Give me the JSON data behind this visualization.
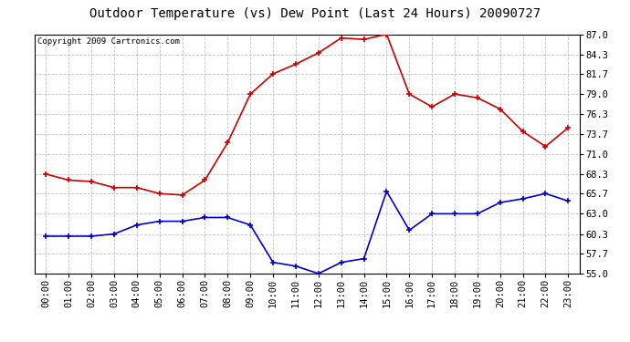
{
  "title": "Outdoor Temperature (vs) Dew Point (Last 24 Hours) 20090727",
  "copyright": "Copyright 2009 Cartronics.com",
  "hours": [
    "00:00",
    "01:00",
    "02:00",
    "03:00",
    "04:00",
    "05:00",
    "06:00",
    "07:00",
    "08:00",
    "09:00",
    "10:00",
    "11:00",
    "12:00",
    "13:00",
    "14:00",
    "15:00",
    "16:00",
    "17:00",
    "18:00",
    "19:00",
    "20:00",
    "21:00",
    "22:00",
    "23:00"
  ],
  "temp": [
    68.3,
    67.5,
    67.3,
    66.5,
    66.5,
    65.7,
    65.5,
    67.5,
    72.5,
    79.0,
    81.7,
    83.0,
    84.5,
    86.5,
    86.3,
    87.0,
    79.0,
    77.3,
    79.0,
    78.5,
    77.0,
    74.0,
    72.0,
    74.5
  ],
  "dew": [
    60.0,
    60.0,
    60.0,
    60.3,
    61.5,
    62.0,
    62.0,
    62.5,
    62.5,
    61.5,
    56.5,
    56.0,
    55.0,
    56.5,
    57.0,
    66.0,
    60.8,
    63.0,
    63.0,
    63.0,
    64.5,
    65.0,
    65.7,
    64.7
  ],
  "temp_color": "#cc0000",
  "dew_color": "#0000cc",
  "bg_color": "#ffffff",
  "plot_bg_color": "#ffffff",
  "grid_color": "#c0c0c0",
  "ylim": [
    55.0,
    87.0
  ],
  "yticks": [
    55.0,
    57.7,
    60.3,
    63.0,
    65.7,
    68.3,
    71.0,
    73.7,
    76.3,
    79.0,
    81.7,
    84.3,
    87.0
  ],
  "title_fontsize": 10,
  "copyright_fontsize": 6.5,
  "tick_fontsize": 7.5
}
